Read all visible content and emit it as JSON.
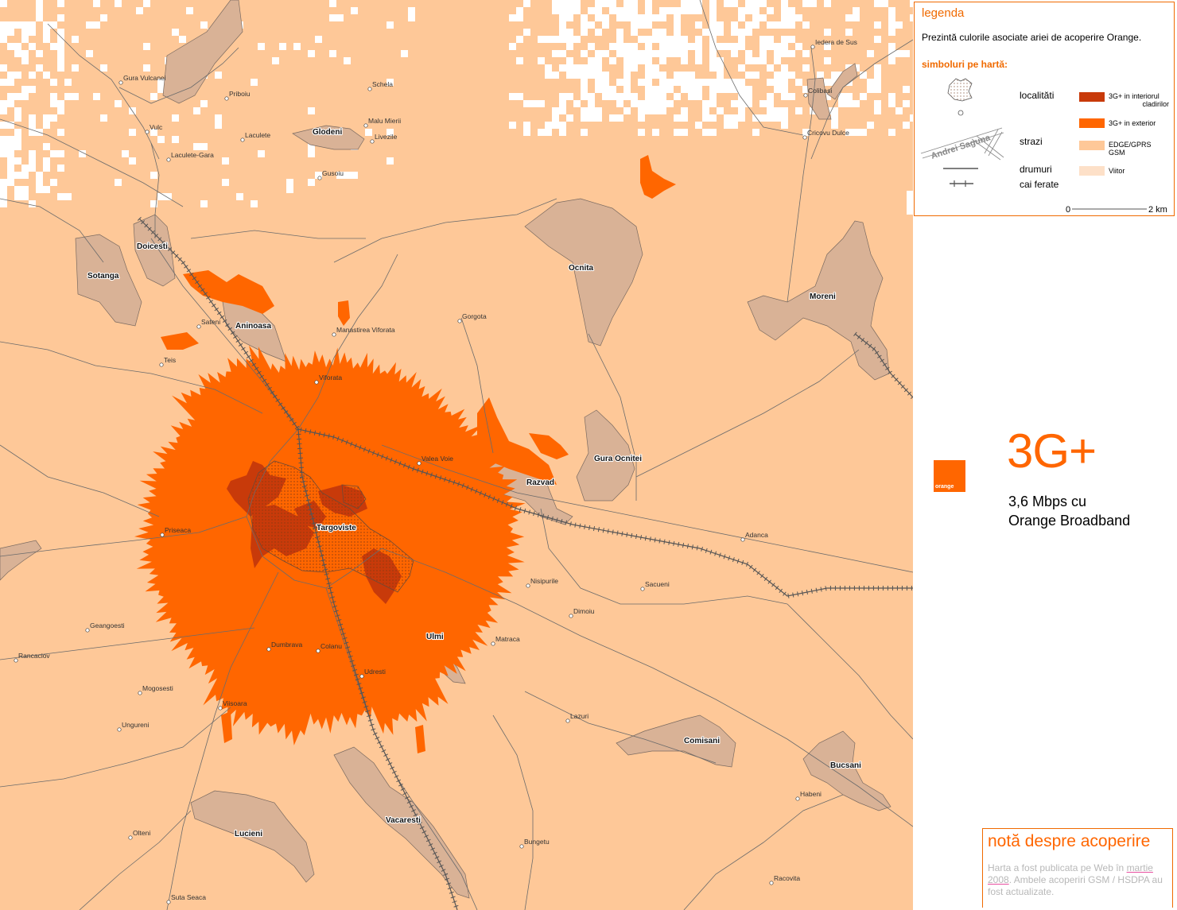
{
  "legend": {
    "title": "legenda",
    "description": "Prezintă culorile asociate ariei de acoperire Orange.",
    "symbols_title": "simboluri pe hartă:",
    "labels": {
      "localities": "localităti",
      "streets": "strazi",
      "roads": "drumuri",
      "railways": "cai ferate"
    },
    "street_sample": "Andrei Saguna",
    "coverage": [
      {
        "label_line1": "3G+ in interiorul",
        "label_line2": "cladirilor",
        "color": "#c83a0a"
      },
      {
        "label_line1": "3G+ in exterior",
        "label_line2": "",
        "color": "#ff6600"
      },
      {
        "label_line1": "EDGE/GPRS",
        "label_line2": "GSM",
        "color": "#fec898"
      },
      {
        "label_line1": "Viitor",
        "label_line2": "",
        "color": "#fde0c8"
      }
    ],
    "scale": {
      "start": "0",
      "end": "2 km"
    }
  },
  "promo": {
    "logo_text": "orange",
    "title": "3G+",
    "line1": "3,6 Mbps cu",
    "line2": "Orange Broadband"
  },
  "note": {
    "title": "notă despre acoperire",
    "text_before": "Harta a fost publicata pe Web în",
    "date": "martie 2008",
    "text_after": ". Ambele acoperiri GSM / HSDPA au fost actualizate."
  },
  "map": {
    "colors": {
      "background": "#fec898",
      "outdoor": "#ff6600",
      "indoor": "#c83a0a",
      "future": "#ffffff",
      "locality": "#d9b296",
      "road": "#6b6b6b"
    },
    "cities": [
      {
        "name": "Targoviste"
      },
      {
        "name": "Doicesti"
      },
      {
        "name": "Sotanga"
      },
      {
        "name": "Aninoasa"
      },
      {
        "name": "Glodeni"
      },
      {
        "name": "Ocnita"
      },
      {
        "name": "Moreni"
      },
      {
        "name": "Gura Ocnitei"
      },
      {
        "name": "Razvad"
      },
      {
        "name": "Ulmi"
      },
      {
        "name": "Comisani"
      },
      {
        "name": "Bucsani"
      },
      {
        "name": "Vacaresti"
      },
      {
        "name": "Lucieni"
      }
    ],
    "towns": [
      {
        "name": "Gura Vulcanei"
      },
      {
        "name": "Priboiu"
      },
      {
        "name": "Schela"
      },
      {
        "name": "Malu Mierii"
      },
      {
        "name": "Livezile"
      },
      {
        "name": "Laculete"
      },
      {
        "name": "Vulc"
      },
      {
        "name": "Laculete-Gara"
      },
      {
        "name": "Gusoiu"
      },
      {
        "name": "Iedera de Sus"
      },
      {
        "name": "Colibasi"
      },
      {
        "name": "Cricovu Dulce"
      },
      {
        "name": "Sateni"
      },
      {
        "name": "Manastirea Viforata"
      },
      {
        "name": "Gorgota"
      },
      {
        "name": "Teis"
      },
      {
        "name": "Viforata"
      },
      {
        "name": "Valea Voie"
      },
      {
        "name": "Priseaca"
      },
      {
        "name": "Adanca"
      },
      {
        "name": "Nisipurile"
      },
      {
        "name": "Sacueni"
      },
      {
        "name": "Dimoiu"
      },
      {
        "name": "Geangoesti"
      },
      {
        "name": "Matraca"
      },
      {
        "name": "Rancaciov"
      },
      {
        "name": "Dumbrava"
      },
      {
        "name": "Colanu"
      },
      {
        "name": "Udresti"
      },
      {
        "name": "Mogosesti"
      },
      {
        "name": "Viisoara"
      },
      {
        "name": "Lazuri"
      },
      {
        "name": "Ungureni"
      },
      {
        "name": "Habeni"
      },
      {
        "name": "Olteni"
      },
      {
        "name": "Bungetu"
      },
      {
        "name": "Racovita"
      },
      {
        "name": "Suta Seaca"
      }
    ]
  }
}
